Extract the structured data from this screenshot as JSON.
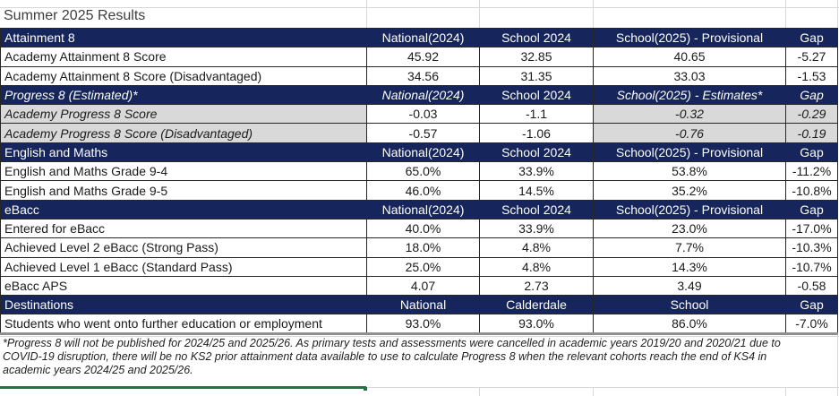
{
  "title": "Summer 2025 Results",
  "colors": {
    "header_bg": "#16255B",
    "header_text": "#FFFFFF",
    "shaded_row_bg": "#D9D9D9",
    "selection_green": "#217346"
  },
  "table": {
    "sections": [
      {
        "name": "Attainment 8",
        "estimated": false,
        "columns": [
          "National(2024)",
          "School 2024",
          "School(2025) - Provisional",
          "Gap"
        ],
        "rows": [
          {
            "label": "Academy Attainment 8 Score",
            "values": [
              "45.92",
              "32.85",
              "40.65",
              "-5.27"
            ]
          },
          {
            "label": "Academy Attainment 8 Score (Disadvantaged)",
            "values": [
              "34.56",
              "31.35",
              "33.03",
              "-1.53"
            ]
          }
        ]
      },
      {
        "name": "Progress 8 (Estimated)*",
        "estimated": true,
        "columns": [
          "National(2024)",
          "School 2024",
          "School(2025) - Estimates*",
          "Gap"
        ],
        "rows": [
          {
            "label": "Academy Progress 8 Score",
            "values": [
              "-0.03",
              "-1.1",
              "-0.32",
              "-0.29"
            ]
          },
          {
            "label": "Academy Progress 8 Score (Disadvantaged)",
            "values": [
              "-0.57",
              "-1.06",
              "-0.76",
              "-0.19"
            ]
          }
        ]
      },
      {
        "name": "English and Maths",
        "estimated": false,
        "columns": [
          "National(2024)",
          "School 2024",
          "School(2025) - Provisional",
          "Gap"
        ],
        "rows": [
          {
            "label": "English and Maths Grade 9-4",
            "values": [
              "65.0%",
              "33.9%",
              "53.8%",
              "-11.2%"
            ]
          },
          {
            "label": "English and Maths Grade 9-5",
            "values": [
              "46.0%",
              "14.5%",
              "35.2%",
              "-10.8%"
            ]
          }
        ]
      },
      {
        "name": "eBacc",
        "estimated": false,
        "columns": [
          "National(2024)",
          "School 2024",
          "School(2025) - Provisional",
          "Gap"
        ],
        "rows": [
          {
            "label": "Entered for eBacc",
            "values": [
              "40.0%",
              "33.9%",
              "23.0%",
              "-17.0%"
            ]
          },
          {
            "label": "Achieved Level 2 eBacc (Strong Pass)",
            "values": [
              "18.0%",
              "4.8%",
              "7.7%",
              "-10.3%"
            ]
          },
          {
            "label": "Achieved Level 1 eBacc (Standard Pass)",
            "values": [
              "25.0%",
              "4.8%",
              "14.3%",
              "-10.7%"
            ]
          },
          {
            "label": "eBacc APS",
            "values": [
              "4.07",
              "2.73",
              "3.49",
              "-0.58"
            ]
          }
        ]
      },
      {
        "name": "Destinations",
        "estimated": false,
        "columns": [
          "National",
          "Calderdale",
          "School",
          "Gap"
        ],
        "rows": [
          {
            "label": "Students who went onto further education or employment",
            "values": [
              "93.0%",
              "93.0%",
              "86.0%",
              "-7.0%"
            ]
          }
        ]
      }
    ]
  },
  "footnote_lines": [
    "*Progress 8 will not be published for 2024/25 and 2025/26. As primary tests and assessments were cancelled in academic years 2019/20 and 2020/21 due to",
    "COVID-19 disruption, there will be no KS2 prior attainment data available to use to calculate Progress 8 when the relevant cohorts reach the end of KS4 in",
    "academic years 2024/25 and 2025/26."
  ]
}
